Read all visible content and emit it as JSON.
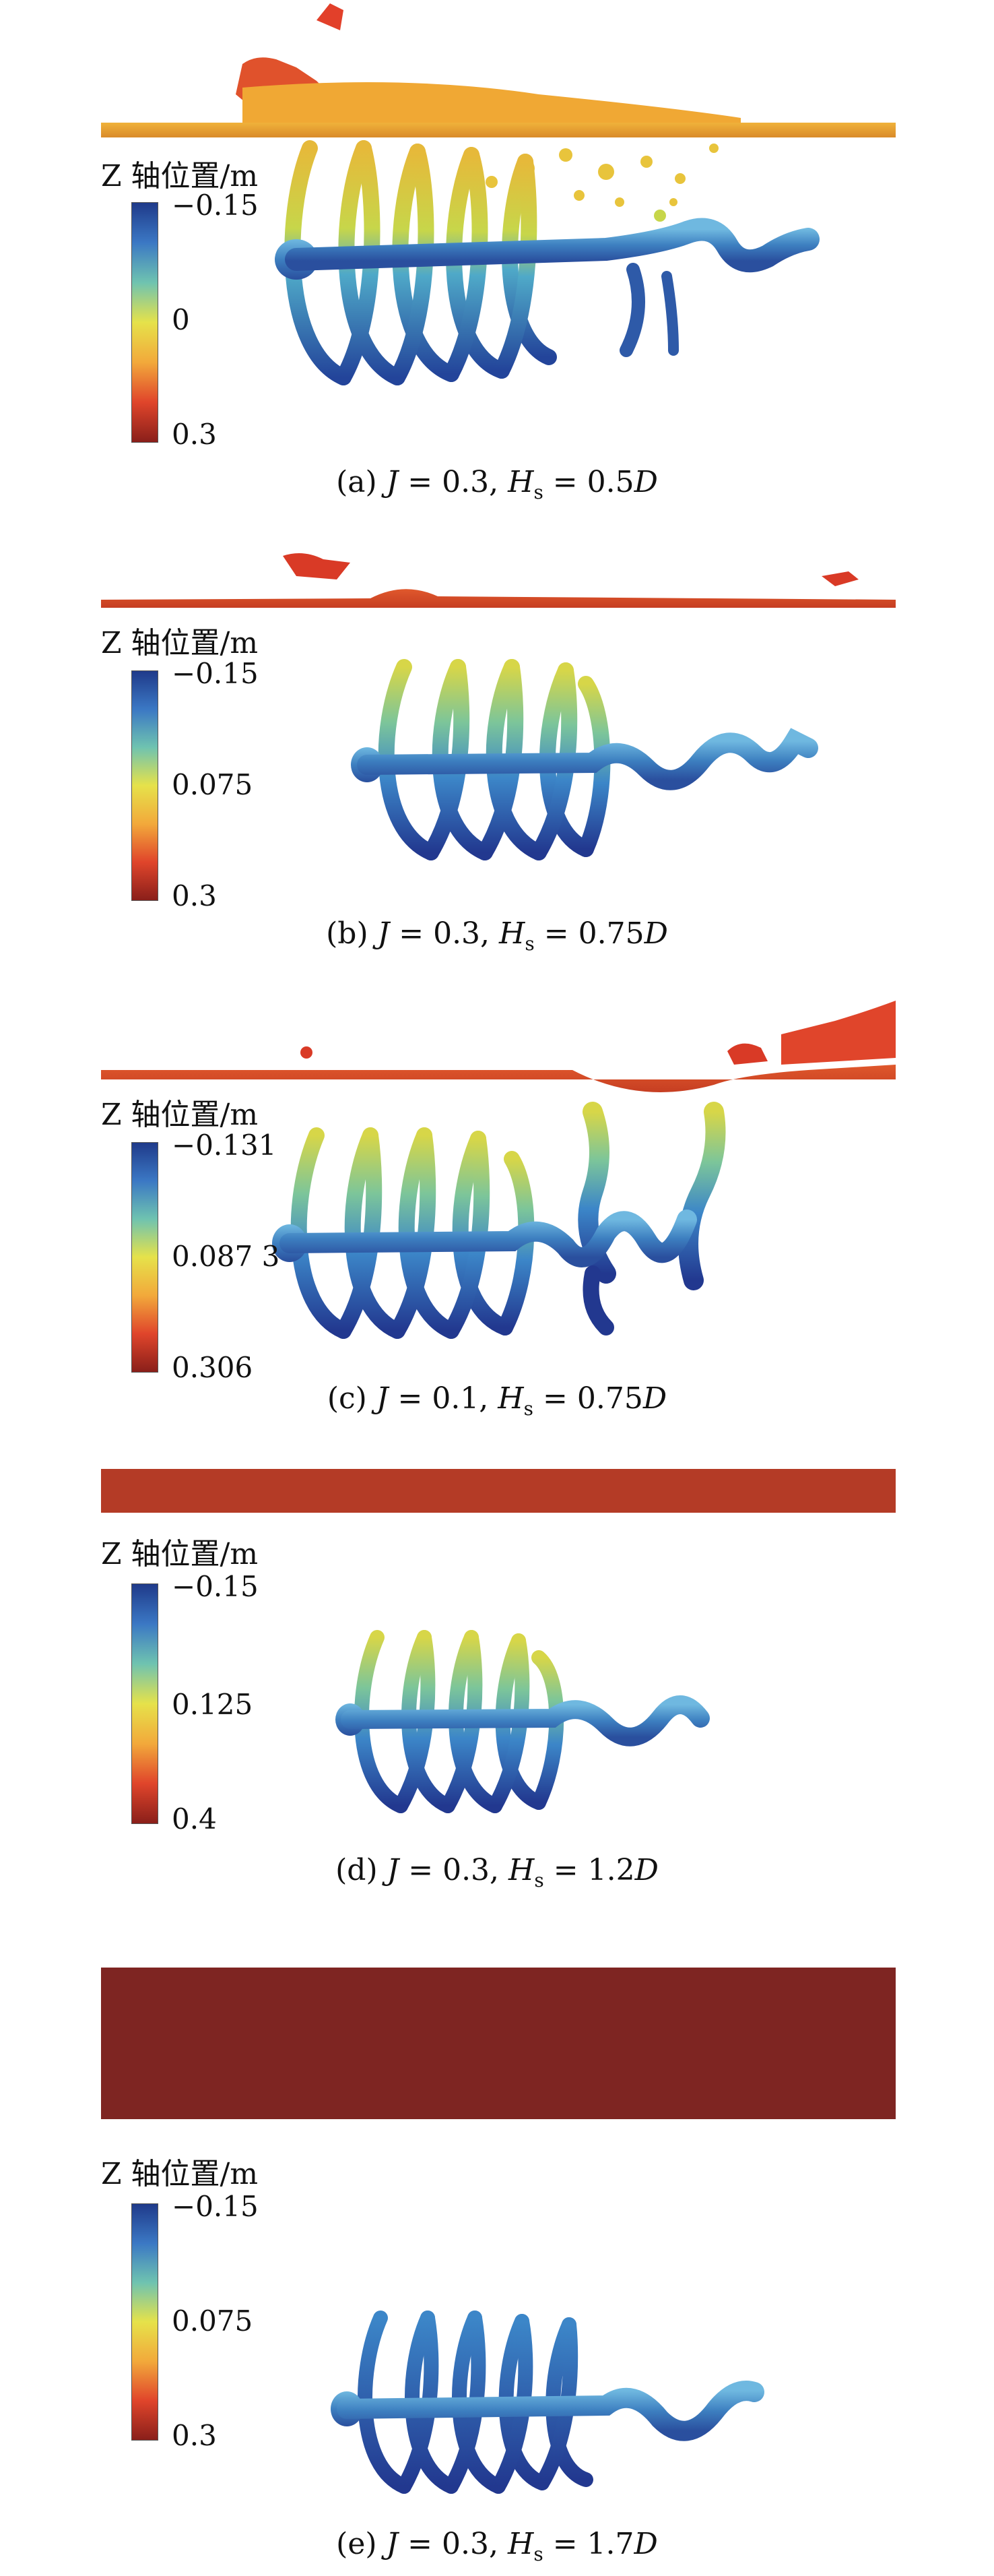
{
  "colorbar_title": "Z 轴位置/m",
  "colorbar_gradient": [
    "#1f3a8a",
    "#3b78c4",
    "#6fc3b0",
    "#e6e24a",
    "#f2a93b",
    "#e0452b",
    "#8a1f1a"
  ],
  "panels": [
    {
      "id": "a",
      "ticks": [
        "−0.15",
        "0",
        "0.3"
      ],
      "caption": {
        "prefix": "(a) ",
        "J_label": "J",
        "J_value": " = 0.3, ",
        "H_label": "H",
        "H_sub": "s",
        "H_value": " = 0.5",
        "unit": "D"
      }
    },
    {
      "id": "b",
      "ticks": [
        "−0.15",
        "0.075",
        "0.3"
      ],
      "caption": {
        "prefix": "(b) ",
        "J_label": "J",
        "J_value": " = 0.3, ",
        "H_label": "H",
        "H_sub": "s",
        "H_value": " = 0.75",
        "unit": "D"
      }
    },
    {
      "id": "c",
      "ticks": [
        "−0.131",
        "0.087 3",
        "0.306"
      ],
      "caption": {
        "prefix": "(c) ",
        "J_label": "J",
        "J_value": " = 0.1, ",
        "H_label": "H",
        "H_sub": "s",
        "H_value": " = 0.75",
        "unit": "D"
      }
    },
    {
      "id": "d",
      "ticks": [
        "−0.15",
        "0.125",
        "0.4"
      ],
      "caption": {
        "prefix": "(d) ",
        "J_label": "J",
        "J_value": " = 0.3, ",
        "H_label": "H",
        "H_sub": "s",
        "H_value": " = 1.2",
        "unit": "D"
      }
    },
    {
      "id": "e",
      "ticks": [
        "−0.15",
        "0.075",
        "0.3"
      ],
      "caption": {
        "prefix": "(e) ",
        "J_label": "J",
        "J_value": " = 0.3, ",
        "H_label": "H",
        "H_sub": "s",
        "H_value": " = 1.7",
        "unit": "D"
      }
    }
  ]
}
